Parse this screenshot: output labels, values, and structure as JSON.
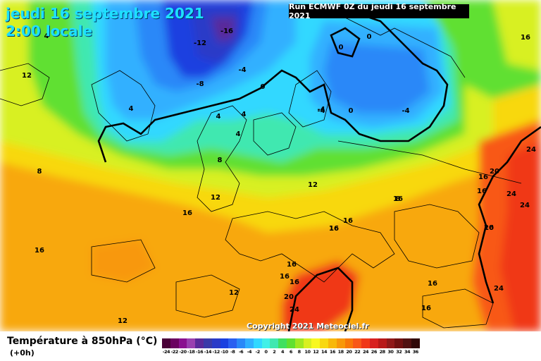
{
  "header": {
    "date_line": "jeudi 16 septembre 2021",
    "time_line": "2:00 locale",
    "run_info": "Run ECMWF 0Z du jeudi 16 septembre 2021"
  },
  "footer": {
    "parameter": "Température à 850hPa (°C)",
    "lead": "(+0h)",
    "copyright": "Copyright 2021 Meteociel.fr"
  },
  "legend": {
    "values": [
      "-24",
      "-22",
      "-20",
      "-18",
      "-16",
      "-14",
      "-12",
      "-10",
      "-8",
      "-6",
      "-4",
      "-2",
      "0",
      "2",
      "4",
      "6",
      "8",
      "10",
      "12",
      "14",
      "16",
      "18",
      "20",
      "22",
      "24",
      "26",
      "28",
      "30",
      "32",
      "34",
      "36"
    ],
    "colors": [
      "#4a0038",
      "#6a0060",
      "#8a1090",
      "#9a40b0",
      "#5a2a9a",
      "#3a3aa8",
      "#2a3ac8",
      "#1a40e0",
      "#2a60f0",
      "#2a88f8",
      "#30b0ff",
      "#30d8ff",
      "#40f0e8",
      "#40e8b0",
      "#40e060",
      "#60e030",
      "#a0e820",
      "#d8f020",
      "#f8f820",
      "#f8d810",
      "#f8b808",
      "#f89808",
      "#f87808",
      "#f85818",
      "#f03818",
      "#d82020",
      "#b81818",
      "#901818",
      "#701010",
      "#501010",
      "#300808"
    ]
  },
  "labels": [
    {
      "text": "-16"
    },
    {
      "text": "-12"
    },
    {
      "text": "-8"
    },
    {
      "text": "-4"
    },
    {
      "text": "-4"
    },
    {
      "text": "0"
    },
    {
      "text": "0"
    },
    {
      "text": "0"
    },
    {
      "text": "0"
    },
    {
      "text": "-4"
    },
    {
      "text": "-4"
    },
    {
      "text": "4"
    },
    {
      "text": "4"
    },
    {
      "text": "4"
    },
    {
      "text": "4"
    },
    {
      "text": "12"
    },
    {
      "text": "8"
    },
    {
      "text": "8"
    },
    {
      "text": "12"
    },
    {
      "text": "12"
    },
    {
      "text": "16"
    },
    {
      "text": "16"
    },
    {
      "text": "16"
    },
    {
      "text": "16"
    },
    {
      "text": "16"
    },
    {
      "text": "16"
    },
    {
      "text": "16"
    },
    {
      "text": "16"
    },
    {
      "text": "16"
    },
    {
      "text": "12"
    },
    {
      "text": "12"
    },
    {
      "text": "20"
    },
    {
      "text": "24"
    },
    {
      "text": "16"
    },
    {
      "text": "16"
    },
    {
      "text": "16"
    },
    {
      "text": "20"
    },
    {
      "text": "16"
    },
    {
      "text": "16"
    },
    {
      "text": "24"
    },
    {
      "text": "24"
    },
    {
      "text": "24"
    },
    {
      "text": "20"
    },
    {
      "text": "24"
    },
    {
      "text": "8"
    },
    {
      "text": "16"
    },
    {
      "text": "4"
    }
  ]
}
